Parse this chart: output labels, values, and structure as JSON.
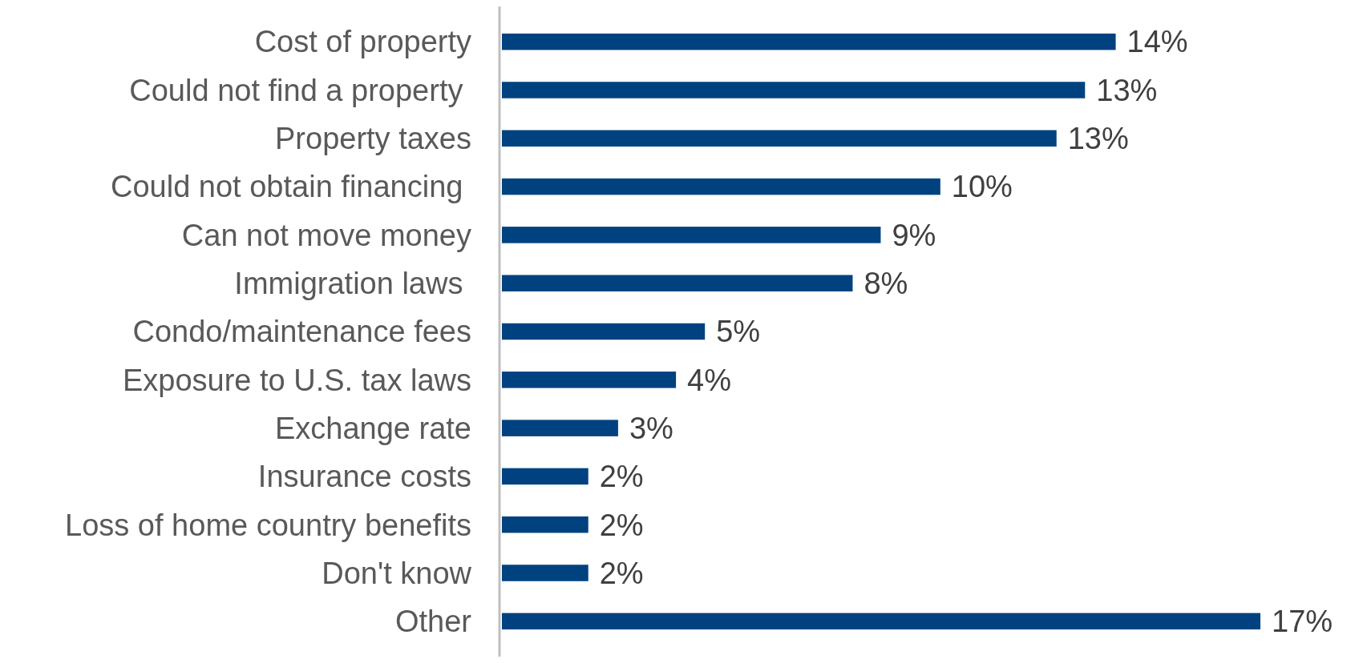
{
  "chart_data": {
    "type": "bar",
    "orientation": "horizontal",
    "categories": [
      "Cost of property",
      "Could not find a property ",
      "Property taxes",
      "Could not obtain financing ",
      "Can not move money",
      "Immigration laws ",
      "Condo/maintenance fees",
      "Exposure to U.S. tax laws",
      "Exchange rate",
      "Insurance costs",
      "Loss of home country benefits",
      "Don't know",
      "Other"
    ],
    "series": [
      {
        "color": "#00427f",
        "values": [
          14,
          13.3,
          12.65,
          10,
          8.64,
          8,
          4.63,
          3.97,
          2.65,
          1.97,
          1.97,
          1.97,
          17.3
        ],
        "value_labels": [
          "14%",
          "13%",
          "13%",
          "10%",
          "9%",
          "8%",
          "5%",
          "4%",
          "3%",
          "2%",
          "2%",
          "2%",
          "17%"
        ]
      }
    ]
  }
}
